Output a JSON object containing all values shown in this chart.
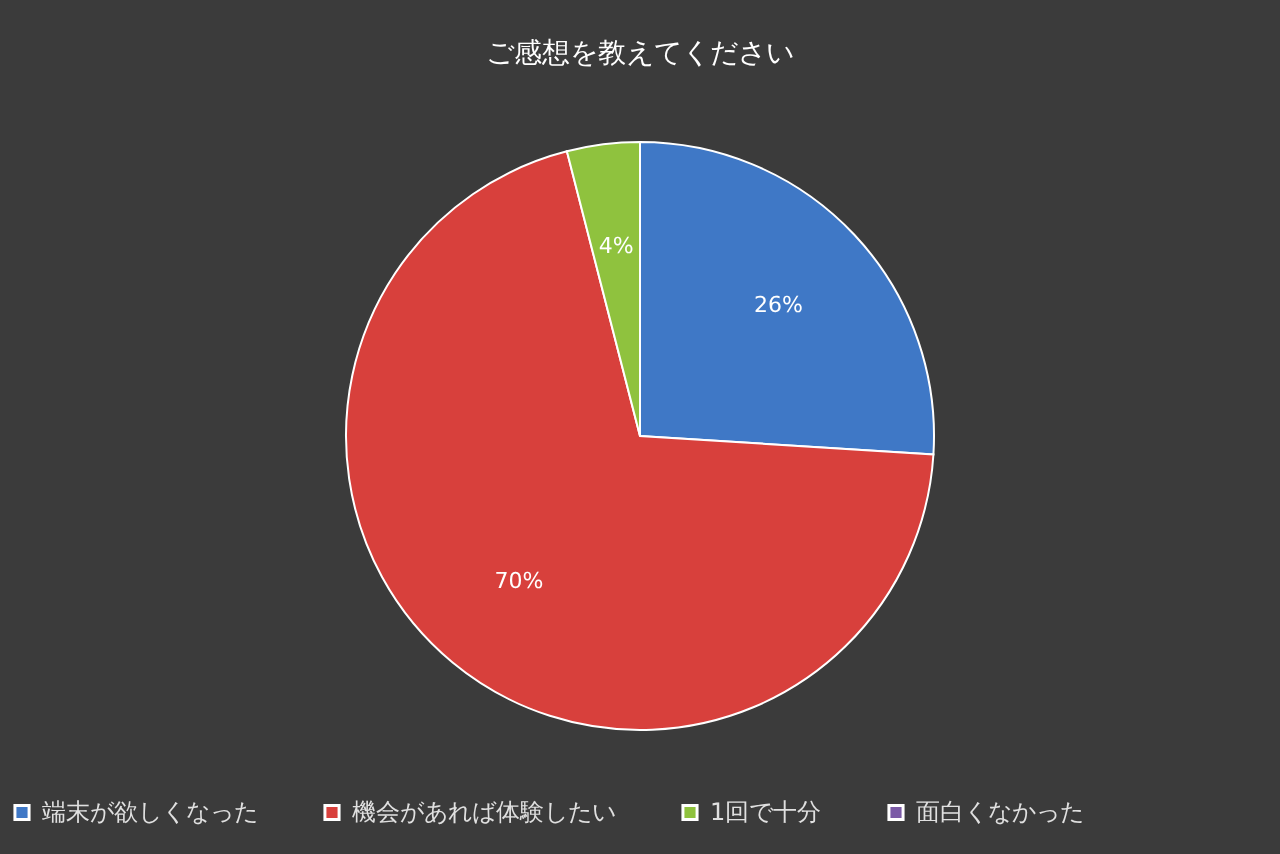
{
  "chart_data": {
    "type": "pie",
    "title": "ご感想を教えてください",
    "categories": [
      "端末が欲しくなった",
      "機会があれば体験したい",
      "1回で十分",
      "面白くなかった"
    ],
    "values": [
      26,
      70,
      4,
      0
    ],
    "colors": [
      "#3f78c6",
      "#d8403c",
      "#8fc23e",
      "#7b5aa6"
    ],
    "value_labels": [
      "26%",
      "70%",
      "4%",
      null
    ],
    "legend": "bottom"
  }
}
